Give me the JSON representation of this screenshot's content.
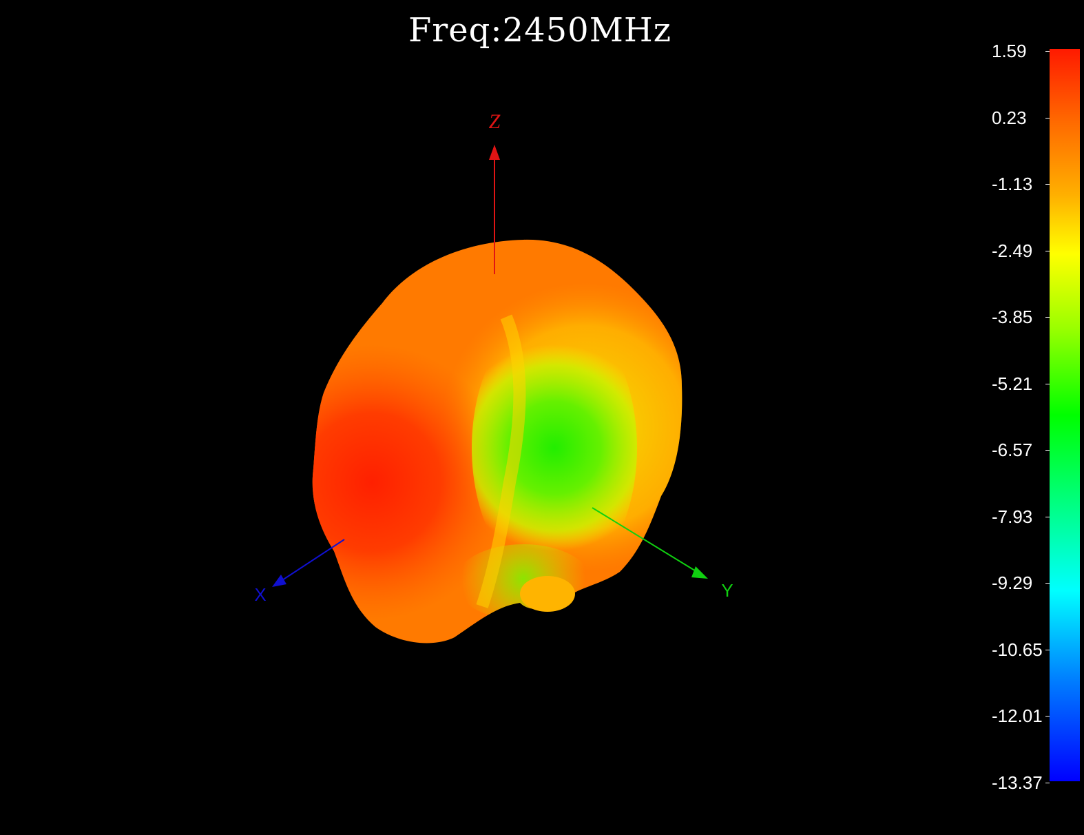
{
  "title": "Freq:2450MHz",
  "axes": {
    "z_label": "Z",
    "x_label": "X",
    "y_label": "Y",
    "z_color": "#e01414",
    "x_color": "#1010d0",
    "y_color": "#10d010"
  },
  "colorbar": {
    "max": 1.59,
    "min": -13.37,
    "ticks": [
      "1.59",
      "0.23",
      "-1.13",
      "-2.49",
      "-3.85",
      "-5.21",
      "-6.57",
      "-7.93",
      "-9.29",
      "-10.65",
      "-12.01",
      "-13.37"
    ],
    "colors": [
      "#ff1a00",
      "#ff6a00",
      "#ffb000",
      "#ffff00",
      "#7cff00",
      "#00ff00",
      "#00ff66",
      "#00ffe0",
      "#00a8ff",
      "#0050ff",
      "#0000ff"
    ]
  }
}
